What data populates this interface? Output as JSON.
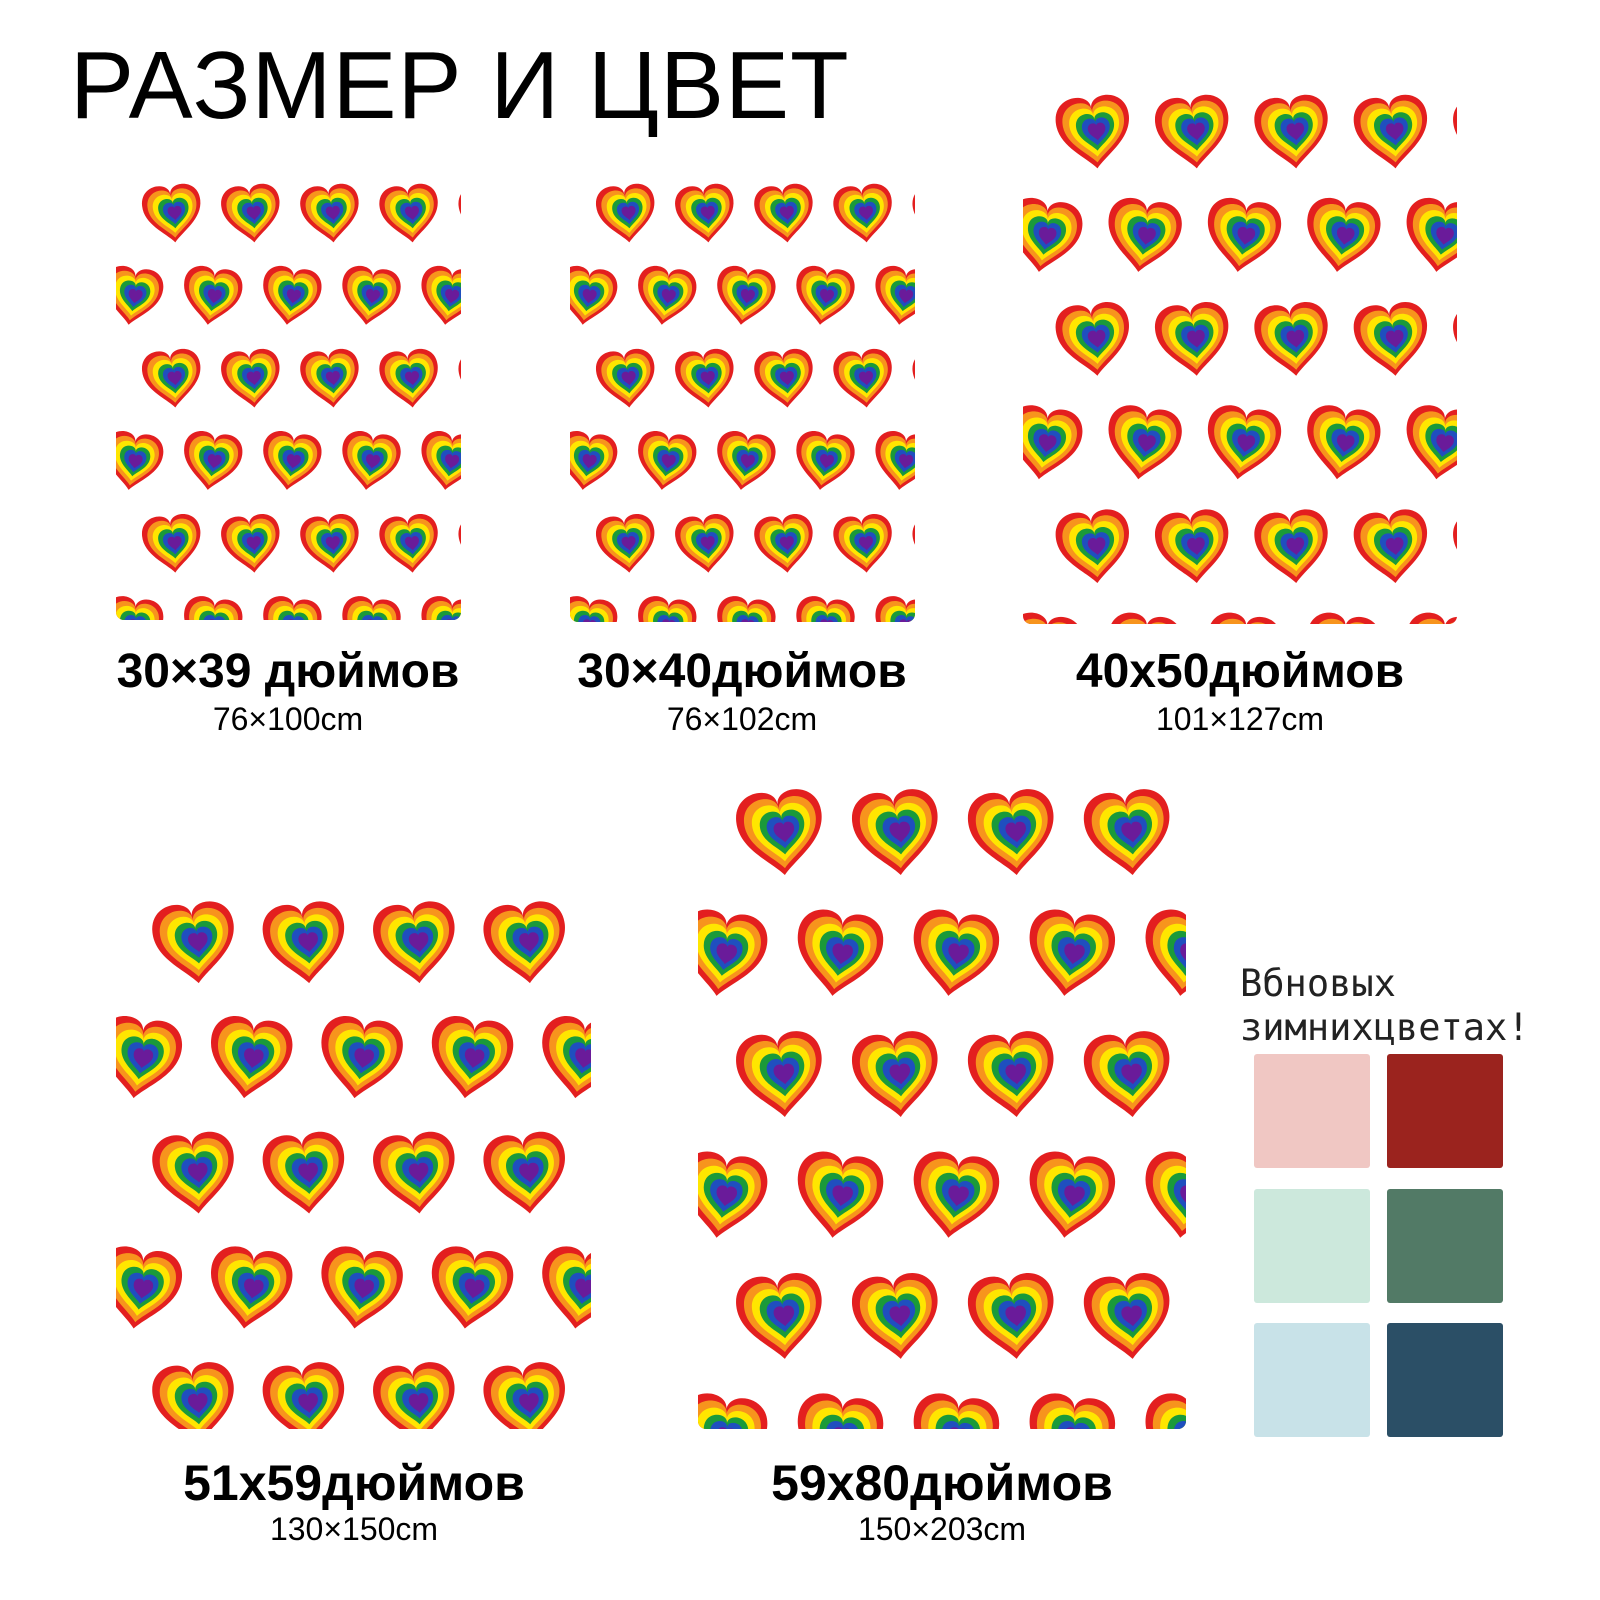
{
  "title": "РАЗМЕР И ЦВЕТ",
  "pattern": {
    "name": "rainbow-heart-pattern",
    "colors": [
      "#e31f1f",
      "#f7941d",
      "#ffe600",
      "#1a9a3a",
      "#1f4fbf",
      "#6a1b9a"
    ]
  },
  "products": [
    {
      "size": "30×39 дюймов",
      "cm": "76×100cm"
    },
    {
      "size": "30×40дюймов",
      "cm": "76×102cm"
    },
    {
      "size": "40x50дюймов",
      "cm": "101×127cm"
    },
    {
      "size": "51x59дюймов",
      "cm": "130×150cm"
    },
    {
      "size": "59x80дюймов",
      "cm": "150×203cm"
    }
  ],
  "colors_section": {
    "line1": "Вбновых",
    "line2": "зимнихцветах!",
    "swatches": [
      "#f0c7c3",
      "#9b231e",
      "#cce8dc",
      "#527a66",
      "#c8e2e8",
      "#2b4f66"
    ]
  }
}
